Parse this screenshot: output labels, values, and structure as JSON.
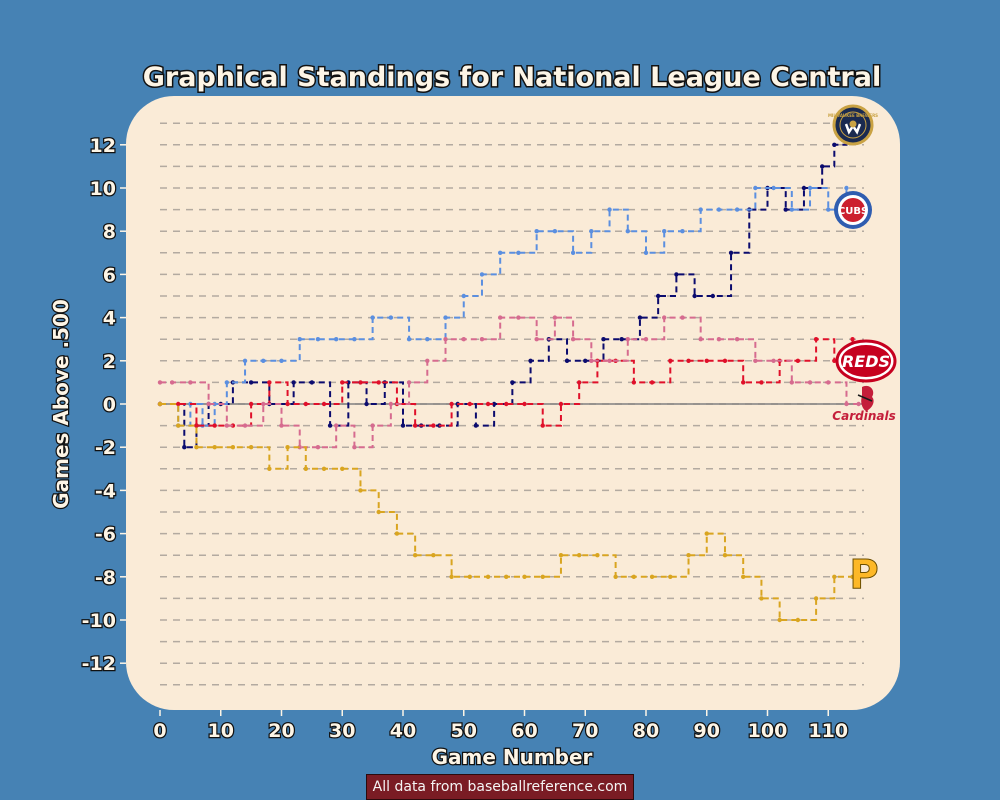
{
  "chart_data": {
    "type": "line",
    "title": "Graphical Standings for National League Central",
    "xlabel": "Game Number",
    "ylabel": "Games Above .500",
    "xlim": [
      -2,
      118
    ],
    "ylim": [
      -13,
      13.2
    ],
    "x_ticks": [
      "0",
      "10",
      "20",
      "30",
      "40",
      "50",
      "60",
      "70",
      "80",
      "90",
      "100",
      "110"
    ],
    "y_ticks": [
      "12",
      "10",
      "8",
      "6",
      "4",
      "2",
      "0",
      "-2",
      "-4",
      "-6",
      "-8",
      "-10",
      "-12"
    ],
    "grid": true,
    "legend": "team logos at line ends (right)",
    "background": "#FAEBD7",
    "series": [
      {
        "team": "Brewers",
        "color": "#0b0b6e",
        "x": [
          0,
          4,
          6,
          8,
          10,
          12,
          15,
          18,
          22,
          25,
          28,
          31,
          34,
          37,
          40,
          43,
          46,
          49,
          52,
          55,
          58,
          61,
          64,
          67,
          70,
          73,
          76,
          79,
          82,
          85,
          88,
          91,
          94,
          97,
          100,
          103,
          106,
          109,
          111,
          113
        ],
        "y": [
          0,
          -2,
          -1,
          0,
          0,
          1,
          1,
          0,
          1,
          1,
          -1,
          1,
          0,
          1,
          -1,
          -1,
          -1,
          0,
          -1,
          0,
          1,
          2,
          3,
          2,
          2,
          3,
          3,
          4,
          5,
          6,
          5,
          5,
          7,
          9,
          10,
          9,
          10,
          11,
          12,
          13
        ]
      },
      {
        "team": "Cubs",
        "color": "#5b8fe0",
        "x": [
          0,
          3,
          5,
          7,
          9,
          11,
          14,
          17,
          20,
          23,
          26,
          29,
          32,
          35,
          38,
          41,
          44,
          47,
          50,
          53,
          56,
          59,
          62,
          65,
          68,
          71,
          74,
          77,
          80,
          83,
          86,
          89,
          92,
          95,
          98,
          101,
          104,
          107,
          110,
          113
        ],
        "y": [
          0,
          -1,
          0,
          -1,
          0,
          1,
          2,
          2,
          2,
          3,
          3,
          3,
          3,
          4,
          4,
          3,
          3,
          4,
          5,
          6,
          7,
          7,
          8,
          8,
          7,
          8,
          9,
          8,
          7,
          8,
          8,
          9,
          9,
          9,
          10,
          10,
          9,
          10,
          9,
          10
        ]
      },
      {
        "team": "Reds",
        "color": "#e0102a",
        "x": [
          0,
          3,
          6,
          9,
          12,
          15,
          18,
          21,
          24,
          27,
          30,
          33,
          36,
          39,
          42,
          45,
          48,
          51,
          54,
          57,
          60,
          63,
          66,
          69,
          72,
          75,
          78,
          81,
          84,
          87,
          90,
          93,
          96,
          99,
          102,
          105,
          108,
          111,
          114
        ],
        "y": [
          0,
          0,
          -1,
          -1,
          -1,
          0,
          1,
          0,
          0,
          0,
          1,
          1,
          1,
          0,
          -1,
          -1,
          0,
          0,
          0,
          0,
          0,
          -1,
          0,
          1,
          2,
          2,
          1,
          1,
          2,
          2,
          2,
          2,
          1,
          1,
          2,
          2,
          3,
          2,
          3
        ]
      },
      {
        "team": "Cardinals",
        "color": "#d66b8f",
        "x": [
          0,
          2,
          5,
          8,
          11,
          14,
          17,
          20,
          23,
          26,
          29,
          32,
          35,
          38,
          41,
          44,
          47,
          50,
          53,
          56,
          59,
          62,
          65,
          68,
          71,
          74,
          77,
          80,
          83,
          86,
          89,
          92,
          95,
          98,
          101,
          104,
          107,
          110,
          113,
          115
        ],
        "y": [
          1,
          1,
          1,
          0,
          -1,
          -1,
          0,
          -1,
          -2,
          -2,
          -1,
          -2,
          -1,
          0,
          1,
          2,
          3,
          3,
          3,
          4,
          4,
          3,
          4,
          3,
          2,
          2,
          3,
          3,
          4,
          4,
          3,
          3,
          3,
          2,
          2,
          1,
          1,
          1,
          0,
          0
        ]
      },
      {
        "team": "Pirates",
        "color": "#d9a520",
        "x": [
          0,
          3,
          6,
          9,
          12,
          15,
          18,
          21,
          24,
          27,
          30,
          33,
          36,
          39,
          42,
          45,
          48,
          51,
          54,
          57,
          60,
          63,
          66,
          69,
          72,
          75,
          78,
          81,
          84,
          87,
          90,
          93,
          96,
          99,
          102,
          105,
          108,
          111,
          114
        ],
        "y": [
          0,
          -1,
          -2,
          -2,
          -2,
          -2,
          -3,
          -2,
          -3,
          -3,
          -3,
          -4,
          -5,
          -6,
          -7,
          -7,
          -8,
          -8,
          -8,
          -8,
          -8,
          -8,
          -7,
          -7,
          -7,
          -8,
          -8,
          -8,
          -8,
          -7,
          -6,
          -7,
          -8,
          -9,
          -10,
          -10,
          -9,
          -8,
          -8
        ]
      }
    ]
  },
  "logos": {
    "brewers": {
      "text": "MILWAUKEE BREWERS"
    },
    "cubs": {
      "text": "CUBS"
    },
    "reds": {
      "text": "REDS"
    },
    "cardinals": {
      "text": "Cardinals"
    },
    "pirates": {
      "text": "P"
    }
  },
  "source_note": "All data from baseballreference.com"
}
